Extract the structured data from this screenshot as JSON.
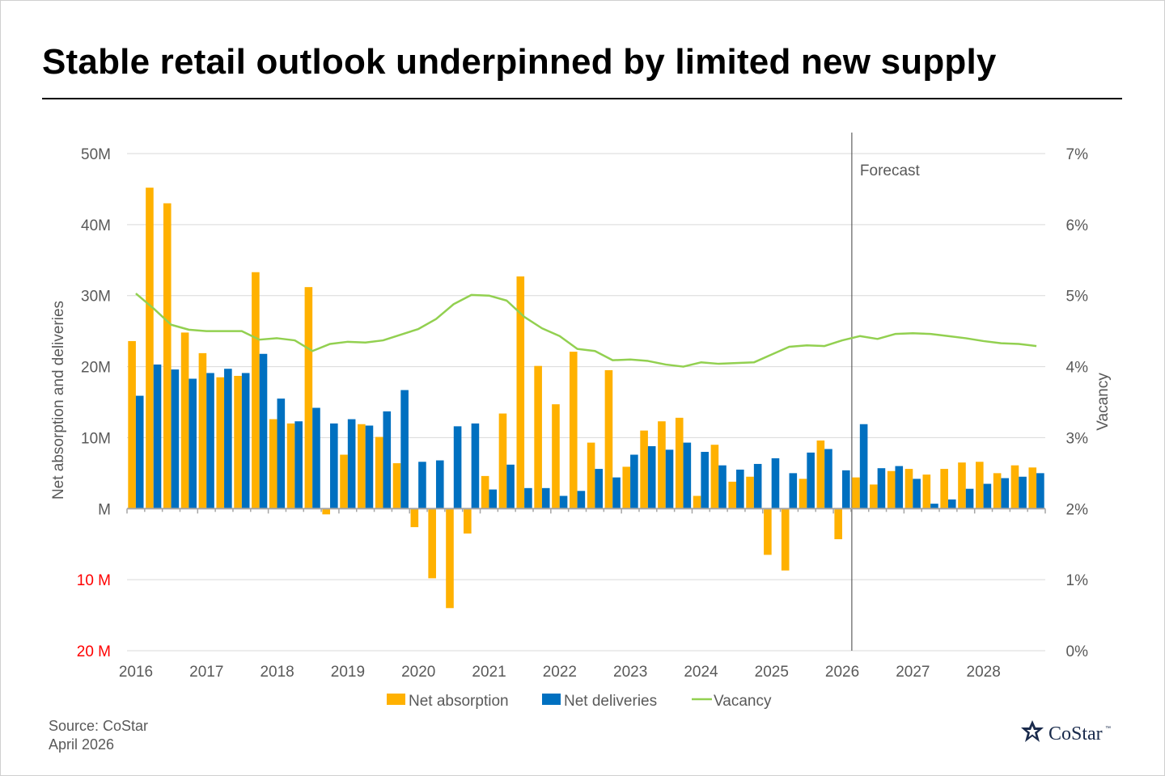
{
  "title": "Stable retail outlook underpinned by limited new supply",
  "source": {
    "line1": "Source: CoStar",
    "line2": "April 2026"
  },
  "logo": {
    "text": "CoStar",
    "tm": "™"
  },
  "chart_data": {
    "type": "bar",
    "forecast_label": "Forecast",
    "forecast_start_index": 41,
    "left_axis": {
      "label": "Net absorption and deliveries",
      "ylim": [
        -20,
        50
      ],
      "ticks": [
        {
          "value": 50,
          "label": "50M",
          "color": "#595959"
        },
        {
          "value": 40,
          "label": "40M",
          "color": "#595959"
        },
        {
          "value": 30,
          "label": "30M",
          "color": "#595959"
        },
        {
          "value": 20,
          "label": "20M",
          "color": "#595959"
        },
        {
          "value": 10,
          "label": "10M",
          "color": "#595959"
        },
        {
          "value": 0,
          "label": "M",
          "color": "#595959"
        },
        {
          "value": -10,
          "label": "10 M",
          "color": "#ff0000"
        },
        {
          "value": -20,
          "label": "20 M",
          "color": "#ff0000"
        }
      ]
    },
    "right_axis": {
      "label": "Vacancy",
      "ylim": [
        0,
        7
      ],
      "ticks": [
        {
          "value": 7,
          "label": "7%"
        },
        {
          "value": 6,
          "label": "6%"
        },
        {
          "value": 5,
          "label": "5%"
        },
        {
          "value": 4,
          "label": "4%"
        },
        {
          "value": 3,
          "label": "3%"
        },
        {
          "value": 2,
          "label": "2%"
        },
        {
          "value": 1,
          "label": "1%"
        },
        {
          "value": 0,
          "label": "0%"
        }
      ]
    },
    "years": [
      "2016",
      "2017",
      "2018",
      "2019",
      "2020",
      "2021",
      "2022",
      "2023",
      "2024",
      "2025",
      "2026",
      "2027",
      "2028"
    ],
    "quarters_per_year": 4,
    "grid": true,
    "legend_position": "bottom",
    "series": [
      {
        "name": "Net absorption",
        "type": "bar",
        "axis": "left",
        "color": "#ffb100",
        "values": [
          23.6,
          45.2,
          43.0,
          24.8,
          21.9,
          18.5,
          18.7,
          33.3,
          12.6,
          12.0,
          31.2,
          -0.8,
          7.6,
          11.9,
          10.1,
          6.4,
          -2.6,
          -9.8,
          -14.0,
          -3.5,
          4.6,
          13.4,
          32.7,
          20.1,
          14.7,
          22.1,
          9.3,
          19.5,
          5.9,
          11.0,
          12.3,
          12.8,
          1.8,
          9.0,
          3.8,
          4.5,
          -6.5,
          -8.7,
          4.2,
          9.6,
          -4.3,
          4.4,
          3.4,
          5.3,
          5.6,
          4.8,
          5.6,
          6.5,
          6.6,
          5.0,
          6.1,
          5.8
        ]
      },
      {
        "name": "Net deliveries",
        "type": "bar",
        "axis": "left",
        "color": "#0070c0",
        "values": [
          15.9,
          20.3,
          19.6,
          18.3,
          19.1,
          19.7,
          19.1,
          21.8,
          15.5,
          12.3,
          14.2,
          12.0,
          12.6,
          11.7,
          13.7,
          16.7,
          6.6,
          6.8,
          11.6,
          12.0,
          2.7,
          6.2,
          2.9,
          2.9,
          1.8,
          2.5,
          5.6,
          4.4,
          7.6,
          8.8,
          8.3,
          9.3,
          8.0,
          6.1,
          5.5,
          6.3,
          7.1,
          5.0,
          7.9,
          8.4,
          5.4,
          11.9,
          5.7,
          6.0,
          4.2,
          0.7,
          1.3,
          2.8,
          3.5,
          4.3,
          4.5,
          5.0
        ]
      },
      {
        "name": "Vacancy",
        "type": "line",
        "axis": "right",
        "color": "#92d050",
        "values": [
          5.03,
          4.82,
          4.59,
          4.52,
          4.5,
          4.5,
          4.5,
          4.38,
          4.4,
          4.37,
          4.22,
          4.32,
          4.35,
          4.34,
          4.37,
          4.45,
          4.53,
          4.67,
          4.88,
          5.01,
          5.0,
          4.93,
          4.7,
          4.54,
          4.43,
          4.25,
          4.22,
          4.09,
          4.1,
          4.08,
          4.03,
          4.0,
          4.06,
          4.04,
          4.05,
          4.06,
          4.17,
          4.28,
          4.3,
          4.29,
          4.37,
          4.43,
          4.39,
          4.46,
          4.47,
          4.46,
          4.43,
          4.4,
          4.36,
          4.33,
          4.32,
          4.29
        ]
      }
    ]
  }
}
